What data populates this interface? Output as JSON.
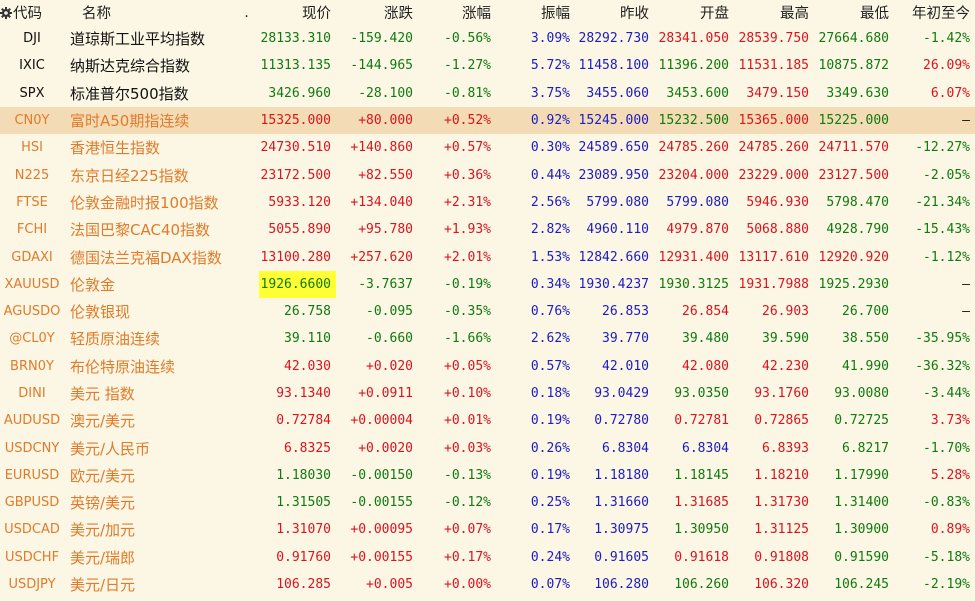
{
  "headers": {
    "code": "代码",
    "name": "名称",
    "dot": ".",
    "price": "现价",
    "change": "涨跌",
    "pct": "涨幅",
    "amp": "振幅",
    "prev": "昨收",
    "open": "开盘",
    "high": "最高",
    "low": "最低",
    "ytd": "年初至今"
  },
  "rows": [
    {
      "code": "DJI",
      "name": "道琼斯工业平均指数",
      "price": "28133.310",
      "change": "-159.420",
      "pct": "-0.56%",
      "amp": "3.09%",
      "prev": "28292.730",
      "open": "28341.050",
      "high": "28539.750",
      "low": "27664.680",
      "ytd": "-1.42%"
    },
    {
      "code": "IXIC",
      "name": "纳斯达克综合指数",
      "price": "11313.135",
      "change": "-144.965",
      "pct": "-1.27%",
      "amp": "5.72%",
      "prev": "11458.100",
      "open": "11396.200",
      "high": "11531.185",
      "low": "10875.872",
      "ytd": "26.09%"
    },
    {
      "code": "SPX",
      "name": "标准普尔500指数",
      "price": "3426.960",
      "change": "-28.100",
      "pct": "-0.81%",
      "amp": "3.75%",
      "prev": "3455.060",
      "open": "3453.600",
      "high": "3479.150",
      "low": "3349.630",
      "ytd": "6.07%"
    },
    {
      "code": "CN0Y",
      "name": "富时A50期指连续",
      "price": "15325.000",
      "change": "+80.000",
      "pct": "+0.52%",
      "amp": "0.92%",
      "prev": "15245.000",
      "open": "15232.500",
      "high": "15365.000",
      "low": "15225.000",
      "ytd": "–"
    },
    {
      "code": "HSI",
      "name": "香港恒生指数",
      "price": "24730.510",
      "change": "+140.860",
      "pct": "+0.57%",
      "amp": "0.30%",
      "prev": "24589.650",
      "open": "24785.260",
      "high": "24785.260",
      "low": "24711.570",
      "ytd": "-12.27%"
    },
    {
      "code": "N225",
      "name": "东京日经225指数",
      "price": "23172.500",
      "change": "+82.550",
      "pct": "+0.36%",
      "amp": "0.44%",
      "prev": "23089.950",
      "open": "23204.000",
      "high": "23229.000",
      "low": "23127.500",
      "ytd": "-2.05%"
    },
    {
      "code": "FTSE",
      "name": "伦敦金融时报100指数",
      "price": "5933.120",
      "change": "+134.040",
      "pct": "+2.31%",
      "amp": "2.56%",
      "prev": "5799.080",
      "open": "5799.080",
      "high": "5946.930",
      "low": "5798.470",
      "ytd": "-21.34%"
    },
    {
      "code": "FCHI",
      "name": "法国巴黎CAC40指数",
      "price": "5055.890",
      "change": "+95.780",
      "pct": "+1.93%",
      "amp": "2.82%",
      "prev": "4960.110",
      "open": "4979.870",
      "high": "5068.880",
      "low": "4928.790",
      "ytd": "-15.43%"
    },
    {
      "code": "GDAXI",
      "name": "德国法兰克福DAX指数",
      "price": "13100.280",
      "change": "+257.620",
      "pct": "+2.01%",
      "amp": "1.53%",
      "prev": "12842.660",
      "open": "12931.400",
      "high": "13117.610",
      "low": "12920.920",
      "ytd": "-1.12%"
    },
    {
      "code": "XAUUSD",
      "name": "伦敦金",
      "price": "1926.6600",
      "change": "-3.7637",
      "pct": "-0.19%",
      "amp": "0.34%",
      "prev": "1930.4237",
      "open": "1930.3125",
      "high": "1931.7988",
      "low": "1925.2930",
      "ytd": "–"
    },
    {
      "code": "AGUSDO",
      "name": "伦敦银现",
      "price": "26.758",
      "change": "-0.095",
      "pct": "-0.35%",
      "amp": "0.76%",
      "prev": "26.853",
      "open": "26.854",
      "high": "26.903",
      "low": "26.700",
      "ytd": "–"
    },
    {
      "code": "@CL0Y",
      "name": "轻质原油连续",
      "price": "39.110",
      "change": "-0.660",
      "pct": "-1.66%",
      "amp": "2.62%",
      "prev": "39.770",
      "open": "39.480",
      "high": "39.590",
      "low": "38.550",
      "ytd": "-35.95%"
    },
    {
      "code": "BRN0Y",
      "name": "布伦特原油连续",
      "price": "42.030",
      "change": "+0.020",
      "pct": "+0.05%",
      "amp": "0.57%",
      "prev": "42.010",
      "open": "42.080",
      "high": "42.230",
      "low": "41.990",
      "ytd": "-36.32%"
    },
    {
      "code": "DINI",
      "name": "美元 指数",
      "price": "93.1340",
      "change": "+0.0911",
      "pct": "+0.10%",
      "amp": "0.18%",
      "prev": "93.0429",
      "open": "93.0350",
      "high": "93.1760",
      "low": "93.0080",
      "ytd": "-3.44%"
    },
    {
      "code": "AUDUSD",
      "name": "澳元/美元",
      "price": "0.72784",
      "change": "+0.00004",
      "pct": "+0.01%",
      "amp": "0.19%",
      "prev": "0.72780",
      "open": "0.72781",
      "high": "0.72865",
      "low": "0.72725",
      "ytd": "3.73%"
    },
    {
      "code": "USDCNY",
      "name": "美元/人民币",
      "price": "6.8325",
      "change": "+0.0020",
      "pct": "+0.03%",
      "amp": "0.26%",
      "prev": "6.8304",
      "open": "6.8304",
      "high": "6.8393",
      "low": "6.8217",
      "ytd": "-1.70%"
    },
    {
      "code": "EURUSD",
      "name": "欧元/美元",
      "price": "1.18030",
      "change": "-0.00150",
      "pct": "-0.13%",
      "amp": "0.19%",
      "prev": "1.18180",
      "open": "1.18145",
      "high": "1.18210",
      "low": "1.17990",
      "ytd": "5.28%"
    },
    {
      "code": "GBPUSD",
      "name": "英镑/美元",
      "price": "1.31505",
      "change": "-0.00155",
      "pct": "-0.12%",
      "amp": "0.25%",
      "prev": "1.31660",
      "open": "1.31685",
      "high": "1.31730",
      "low": "1.31400",
      "ytd": "-0.83%"
    },
    {
      "code": "USDCAD",
      "name": "美元/加元",
      "price": "1.31070",
      "change": "+0.00095",
      "pct": "+0.07%",
      "amp": "0.17%",
      "prev": "1.30975",
      "open": "1.30950",
      "high": "1.31125",
      "low": "1.30900",
      "ytd": "0.89%"
    },
    {
      "code": "USDCHF",
      "name": "美元/瑞郎",
      "price": "0.91760",
      "change": "+0.00155",
      "pct": "+0.17%",
      "amp": "0.24%",
      "prev": "0.91605",
      "open": "0.91618",
      "high": "0.91808",
      "low": "0.91590",
      "ytd": "-5.18%"
    },
    {
      "code": "USDJPY",
      "name": "美元/日元",
      "price": "106.285",
      "change": "+0.005",
      "pct": "+0.00%",
      "amp": "0.07%",
      "prev": "106.280",
      "open": "106.260",
      "high": "106.320",
      "low": "106.245",
      "ytd": "-2.19%"
    }
  ],
  "selected_row": 3,
  "highlighted_cell": {
    "row": 9,
    "col": "price"
  },
  "colors": {
    "up": "#d9141f",
    "down": "#0f7a0f",
    "neutral": "#1c1cc2",
    "black_text": "#111111",
    "orange_text": "#e07b2a",
    "background": "#fcf6e4",
    "selected_row": "#f3dbb6",
    "highlight": "#ffff33"
  }
}
